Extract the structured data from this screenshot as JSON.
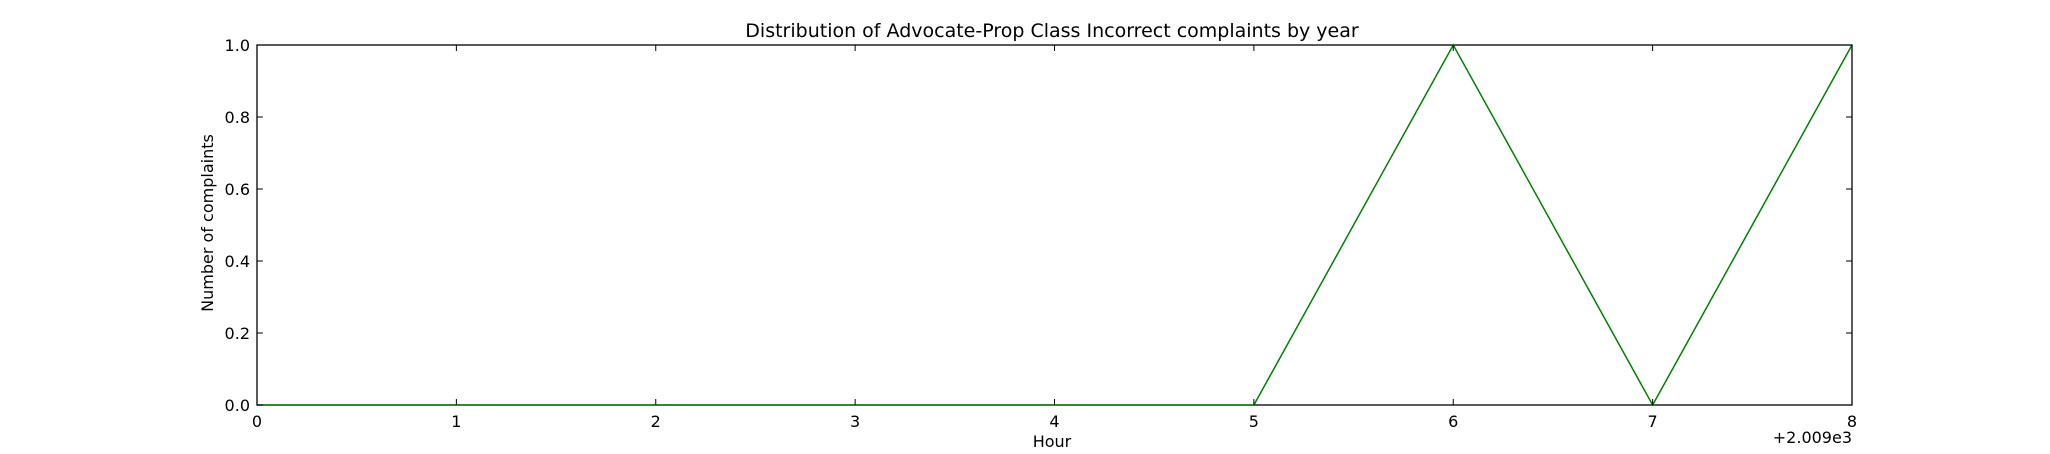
{
  "chart_data": {
    "type": "line",
    "title": "Distribution of  Advocate-Prop Class Incorrect complaints by year",
    "xlabel": "Hour",
    "ylabel": "Number of complaints",
    "x_offset_label": "+2.009e3",
    "xlim": [
      0,
      8
    ],
    "ylim": [
      0.0,
      1.0
    ],
    "x_ticks": [
      "0",
      "1",
      "2",
      "3",
      "4",
      "5",
      "6",
      "7",
      "8"
    ],
    "y_ticks": [
      "0.0",
      "0.2",
      "0.4",
      "0.6",
      "0.8",
      "1.0"
    ],
    "grid": false,
    "series": [
      {
        "color": "#008000",
        "x": [
          0,
          1,
          2,
          3,
          4,
          5,
          6,
          7,
          8
        ],
        "y": [
          0,
          0,
          0,
          0,
          0,
          0,
          1,
          0,
          1
        ]
      }
    ]
  }
}
